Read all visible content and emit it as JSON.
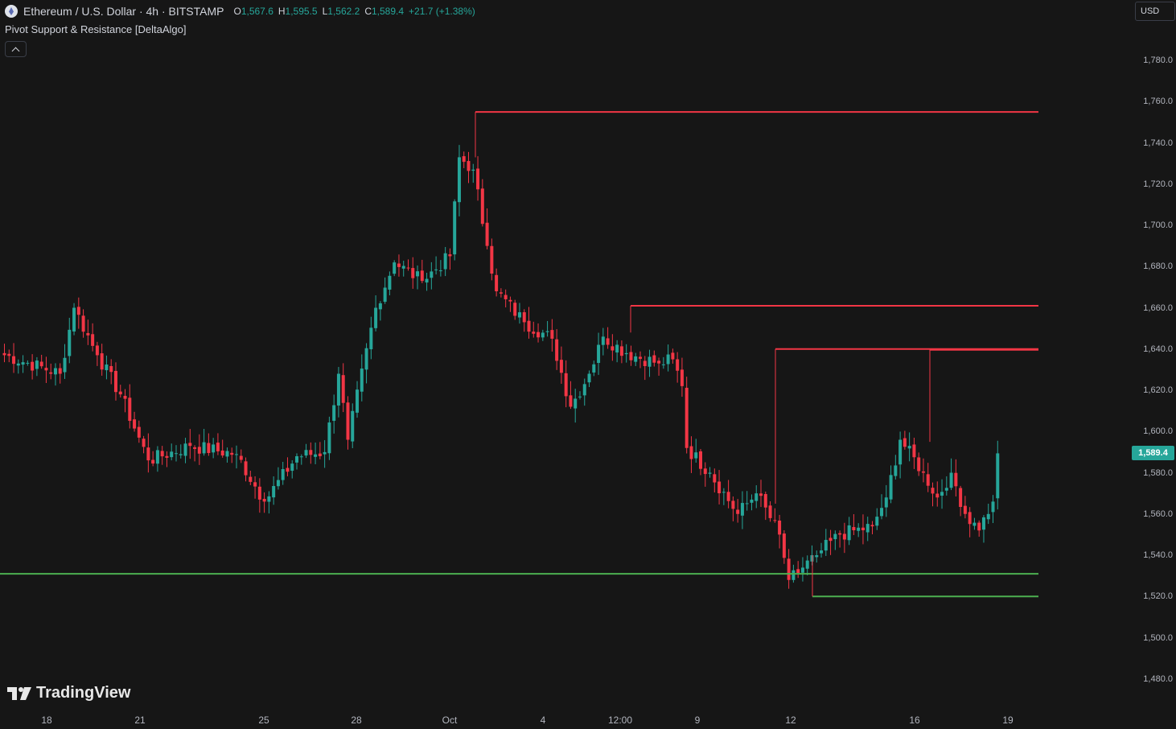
{
  "header": {
    "title": "Ethereum / U.S. Dollar · 4h · BITSTAMP",
    "ohlc": [
      {
        "k": "O",
        "v": "1,567.6"
      },
      {
        "k": "H",
        "v": "1,595.5"
      },
      {
        "k": "L",
        "v": "1,562.2"
      },
      {
        "k": "C",
        "v": "1,589.4"
      },
      {
        "k": "",
        "v": "+21.7 (+1.38%)"
      }
    ]
  },
  "indicator": {
    "label": "Pivot Support & Resistance [DeltaAlgo]"
  },
  "currency": {
    "label": "USD"
  },
  "price_axis": {
    "labels": [
      "1,780.0",
      "1,760.0",
      "1,740.0",
      "1,720.0",
      "1,700.0",
      "1,680.0",
      "1,660.0",
      "1,640.0",
      "1,620.0",
      "1,600.0",
      "1,580.0",
      "1,560.0",
      "1,540.0",
      "1,520.0",
      "1,500.0",
      "1,480.0"
    ],
    "current_price": "1,589.4"
  },
  "time_axis": {
    "labels": [
      "18",
      "21",
      "25",
      "28",
      "Oct",
      "4",
      "12:00",
      "9",
      "12",
      "16",
      "19"
    ]
  },
  "branding": {
    "name": "TradingView"
  },
  "colors": {
    "up": "#26a69a",
    "down": "#f23645",
    "resistance": "#f23645",
    "support": "#4caf50",
    "background": "#161616"
  },
  "chart_data": {
    "type": "candlestick",
    "title": "Ethereum / U.S. Dollar · 4h · BITSTAMP",
    "ylim": [
      1470,
      1790
    ],
    "y_ticks": [
      1780,
      1760,
      1740,
      1720,
      1700,
      1680,
      1660,
      1640,
      1620,
      1600,
      1580,
      1560,
      1540,
      1520,
      1500,
      1480
    ],
    "last": {
      "open": 1567.6,
      "high": 1595.5,
      "low": 1562.2,
      "close": 1589.4,
      "change": 21.7,
      "change_pct": 1.38
    },
    "resistance_levels": [
      1755,
      1661,
      1640,
      1640
    ],
    "support_levels": [
      1531,
      1520
    ],
    "anchors": [
      {
        "bar": 0,
        "close": 1637
      },
      {
        "bar": 12,
        "close": 1628
      },
      {
        "bar": 15,
        "close": 1660
      },
      {
        "bar": 20,
        "close": 1637
      },
      {
        "bar": 25,
        "close": 1618
      },
      {
        "bar": 31,
        "close": 1586
      },
      {
        "bar": 40,
        "close": 1593
      },
      {
        "bar": 50,
        "close": 1589
      },
      {
        "bar": 56,
        "close": 1566
      },
      {
        "bar": 63,
        "close": 1588
      },
      {
        "bar": 69,
        "close": 1590
      },
      {
        "bar": 72,
        "close": 1628
      },
      {
        "bar": 74,
        "close": 1596
      },
      {
        "bar": 80,
        "close": 1660
      },
      {
        "bar": 84,
        "close": 1682
      },
      {
        "bar": 90,
        "close": 1673
      },
      {
        "bar": 96,
        "close": 1685
      },
      {
        "bar": 98,
        "close": 1733
      },
      {
        "bar": 101,
        "close": 1727
      },
      {
        "bar": 104,
        "close": 1690
      },
      {
        "bar": 106,
        "close": 1668
      },
      {
        "bar": 112,
        "close": 1653
      },
      {
        "bar": 118,
        "close": 1645
      },
      {
        "bar": 122,
        "close": 1612
      },
      {
        "bar": 126,
        "close": 1628
      },
      {
        "bar": 129,
        "close": 1646
      },
      {
        "bar": 134,
        "close": 1638
      },
      {
        "bar": 141,
        "close": 1633
      },
      {
        "bar": 144,
        "close": 1635
      },
      {
        "bar": 146,
        "close": 1622
      },
      {
        "bar": 147,
        "close": 1592
      },
      {
        "bar": 152,
        "close": 1580
      },
      {
        "bar": 158,
        "close": 1560
      },
      {
        "bar": 162,
        "close": 1570
      },
      {
        "bar": 167,
        "close": 1550
      },
      {
        "bar": 169,
        "close": 1528
      },
      {
        "bar": 175,
        "close": 1540
      },
      {
        "bar": 180,
        "close": 1550
      },
      {
        "bar": 187,
        "close": 1554
      },
      {
        "bar": 190,
        "close": 1568
      },
      {
        "bar": 193,
        "close": 1596
      },
      {
        "bar": 198,
        "close": 1580
      },
      {
        "bar": 201,
        "close": 1568
      },
      {
        "bar": 204,
        "close": 1580
      },
      {
        "bar": 207,
        "close": 1560
      },
      {
        "bar": 210,
        "close": 1552
      },
      {
        "bar": 213,
        "close": 1566
      },
      {
        "bar": 214,
        "close": 1589.4
      }
    ]
  }
}
